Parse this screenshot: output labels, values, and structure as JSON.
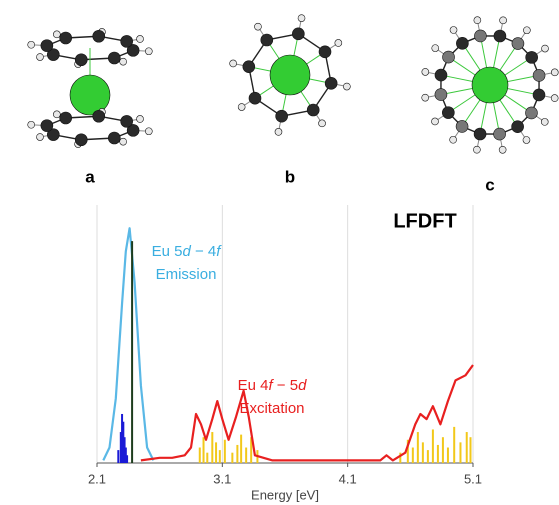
{
  "panels": [
    "a",
    "b",
    "c"
  ],
  "chart_data": {
    "type": "line",
    "title": "LFDFT",
    "xlabel": "Energy [eV]",
    "xlim": [
      2.1,
      5.1
    ],
    "xticks": [
      2.1,
      3.1,
      4.1,
      5.1
    ],
    "ylim": [
      0,
      1
    ],
    "grid": true,
    "series": [
      {
        "style": "stick",
        "color": "#1a1ad6",
        "x": [
          2.27,
          2.29,
          2.3,
          2.31,
          2.32,
          2.33,
          2.34
        ],
        "values": [
          0.05,
          0.12,
          0.19,
          0.16,
          0.1,
          0.06,
          0.03
        ]
      },
      {
        "style": "stick",
        "color": "#f2c81a",
        "x": [
          2.92,
          2.95,
          2.98,
          3.02,
          3.05,
          3.08,
          3.12,
          3.18,
          3.22,
          3.25,
          3.29,
          3.33,
          3.38,
          4.52,
          4.58,
          4.62,
          4.66,
          4.7,
          4.74,
          4.78,
          4.82,
          4.86,
          4.9,
          4.95,
          5.0,
          5.05,
          5.08
        ],
        "values": [
          0.06,
          0.1,
          0.04,
          0.12,
          0.08,
          0.05,
          0.09,
          0.04,
          0.07,
          0.11,
          0.06,
          0.1,
          0.05,
          0.04,
          0.09,
          0.06,
          0.12,
          0.08,
          0.05,
          0.13,
          0.07,
          0.1,
          0.06,
          0.14,
          0.08,
          0.12,
          0.1
        ]
      },
      {
        "style": "line",
        "color": "#5ab8e6",
        "x": [
          2.15,
          2.2,
          2.25,
          2.3,
          2.33,
          2.36,
          2.4,
          2.45,
          2.5,
          2.55
        ],
        "values": [
          0.01,
          0.06,
          0.25,
          0.62,
          0.82,
          0.91,
          0.7,
          0.3,
          0.06,
          0.01
        ]
      },
      {
        "style": "stick",
        "color": "#1d3d1d",
        "x": [
          2.38
        ],
        "values": [
          0.86
        ]
      },
      {
        "style": "line",
        "color": "#e82020",
        "x": [
          2.45,
          2.6,
          2.7,
          2.8,
          2.85,
          2.89,
          2.93,
          2.97,
          3.02,
          3.06,
          3.1,
          3.15,
          3.21,
          3.27,
          3.31,
          3.36,
          3.5,
          4.36,
          4.41,
          4.46,
          4.56,
          4.64,
          4.68,
          4.73,
          4.78,
          4.84,
          4.9,
          4.96,
          5.04,
          5.1
        ],
        "values": [
          0.01,
          0.02,
          0.02,
          0.03,
          0.06,
          0.19,
          0.15,
          0.09,
          0.17,
          0.24,
          0.17,
          0.09,
          0.18,
          0.28,
          0.18,
          0.03,
          0.01,
          0.01,
          0.03,
          0.01,
          0.04,
          0.15,
          0.19,
          0.17,
          0.22,
          0.15,
          0.24,
          0.32,
          0.34,
          0.38
        ]
      }
    ],
    "annotations": [
      {
        "color": "#3aaee0",
        "lines": [
          [
            "Eu 5",
            "d",
            " − 4",
            "f"
          ],
          [
            "Emission"
          ]
        ]
      },
      {
        "color": "#e82020",
        "lines": [
          [
            "Eu 4",
            "f",
            " − 5",
            "d"
          ],
          [
            "Excitation"
          ]
        ]
      }
    ]
  }
}
